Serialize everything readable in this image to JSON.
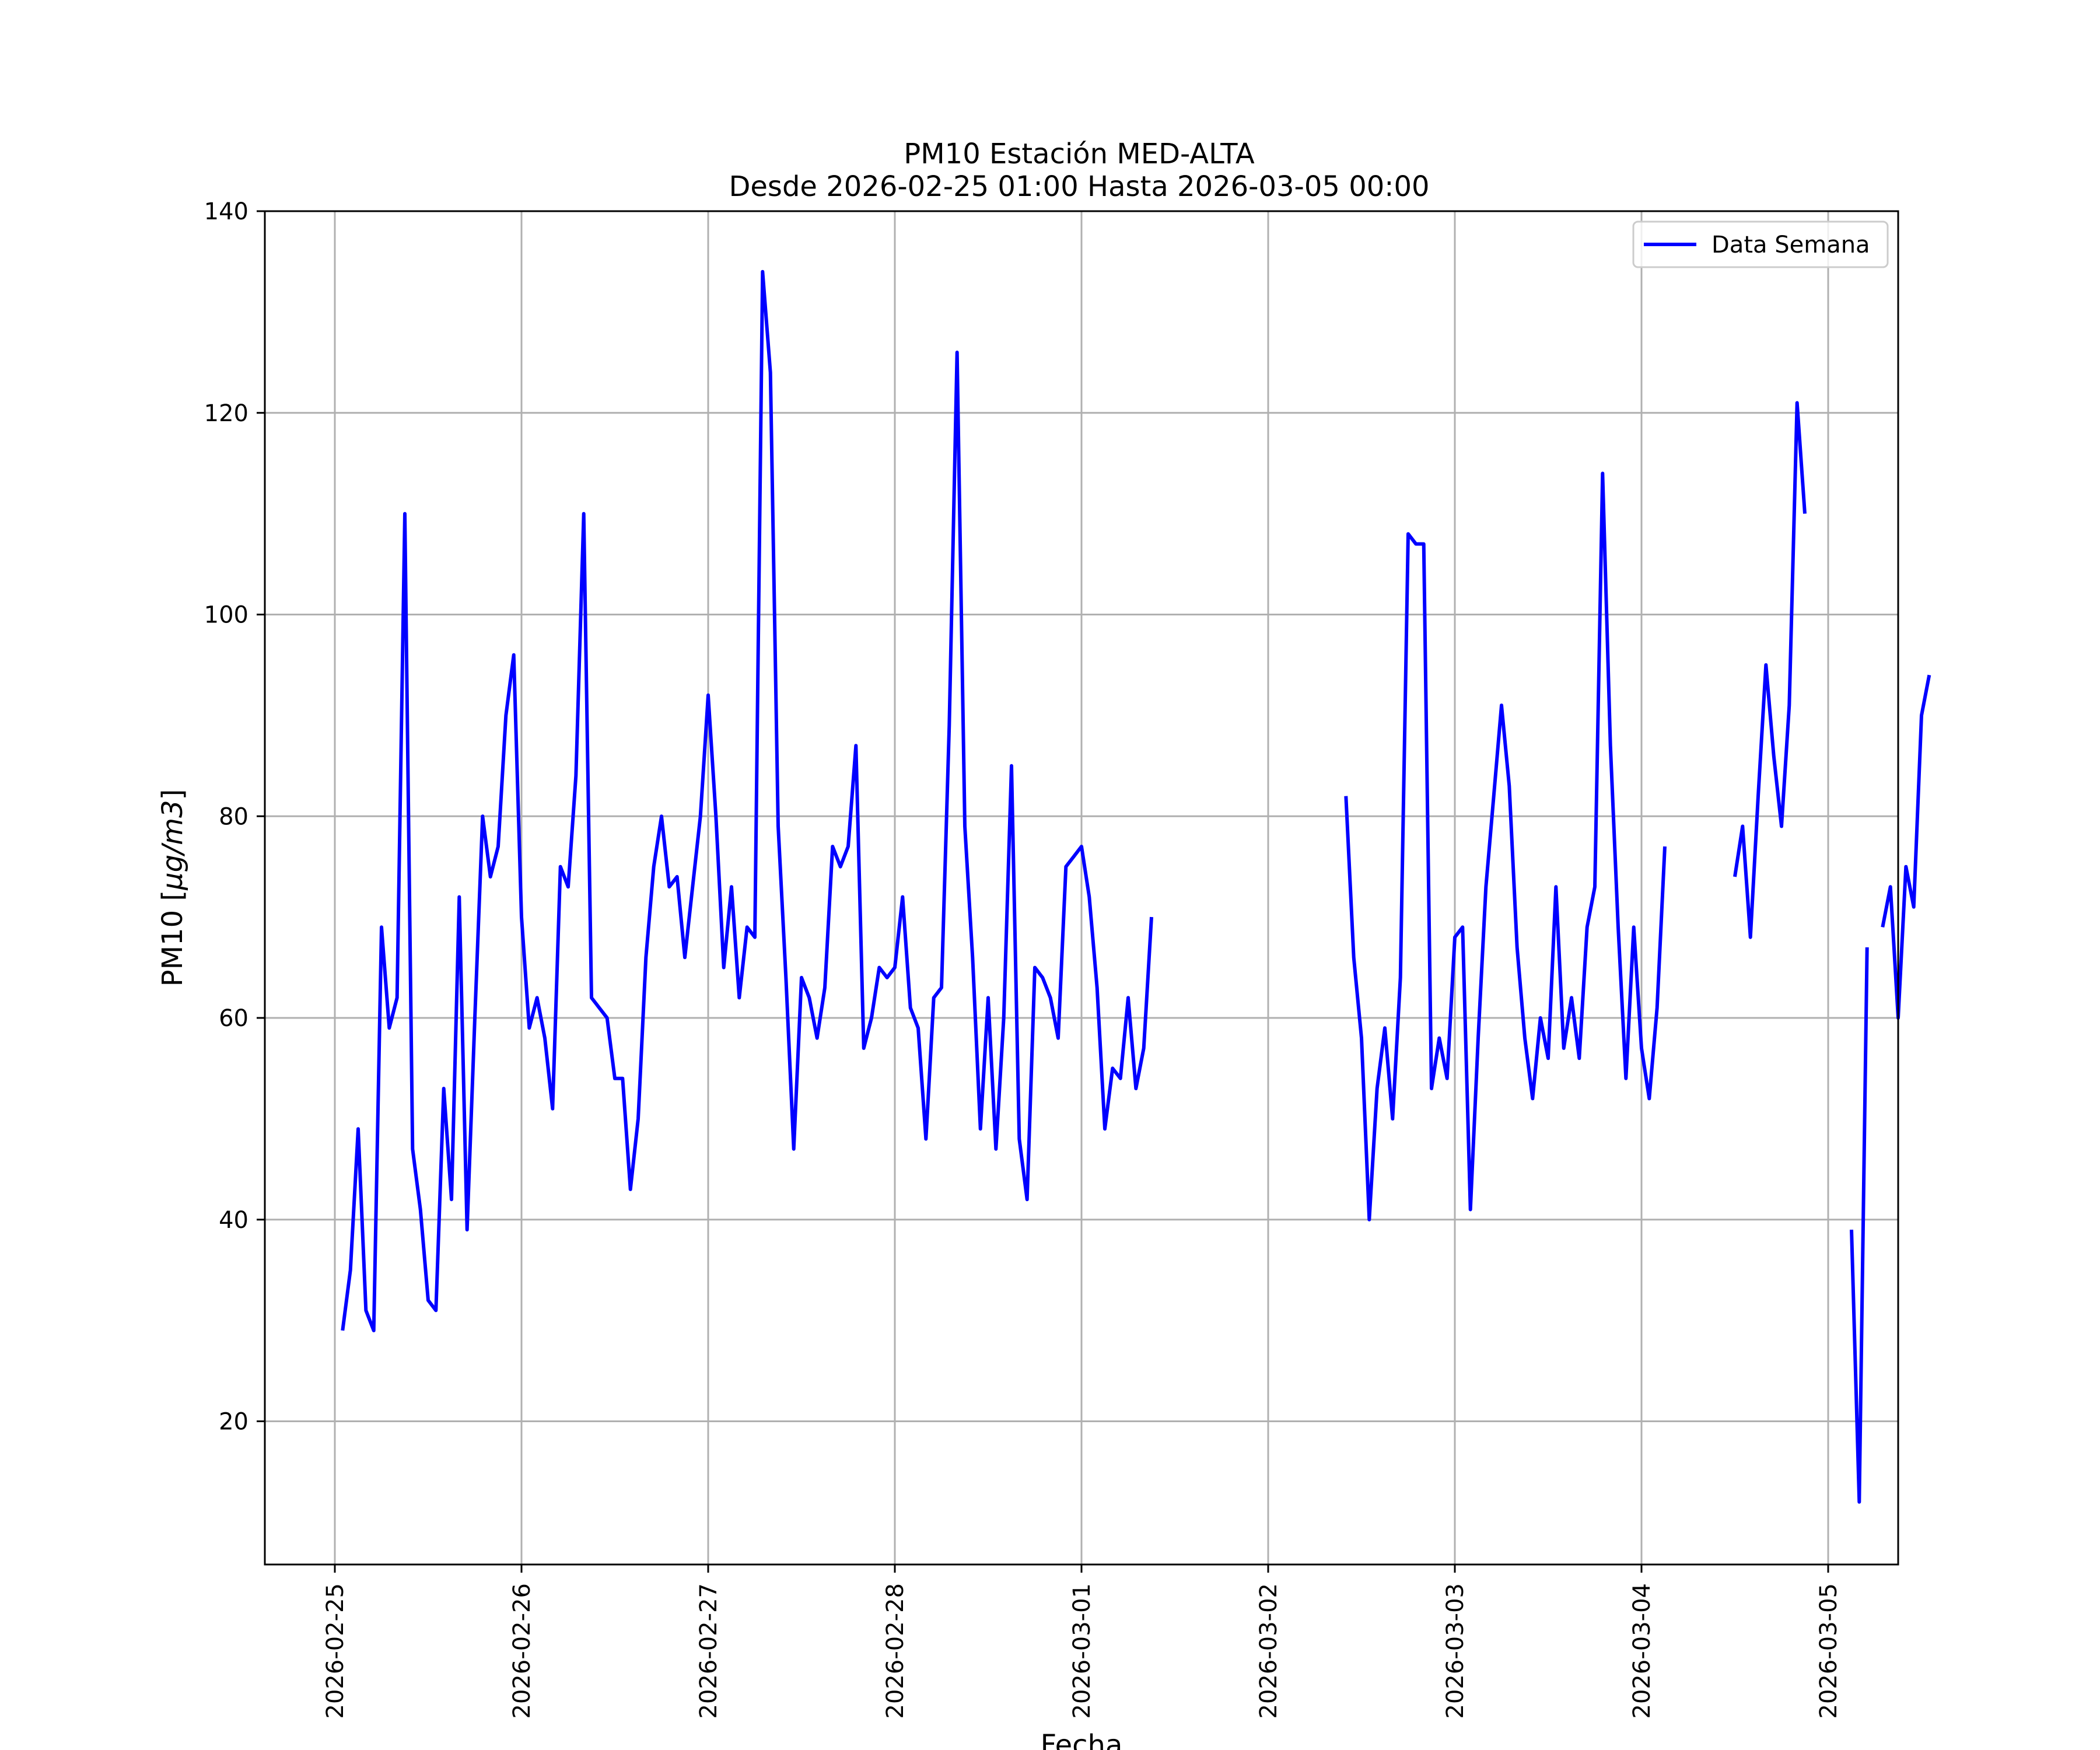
{
  "chart_data": {
    "type": "line",
    "title": "PM10 Estación MED-ALTA",
    "subtitle": "Desde 2026-02-25 01:00 Hasta 2026-03-05 00:00",
    "xlabel": "Fecha",
    "ylabel_main": "PM10 [",
    "ylabel_math": "μg/m3",
    "ylabel_close": "]",
    "xlim": [
      "2026-02-24 15:00",
      "2026-03-05 09:00"
    ],
    "ylim": [
      5.8,
      140
    ],
    "x_ticks": [
      "2026-02-25",
      "2026-02-26",
      "2026-02-27",
      "2026-02-28",
      "2026-03-01",
      "2026-03-02",
      "2026-03-03",
      "2026-03-04",
      "2026-03-05"
    ],
    "y_ticks": [
      20,
      40,
      60,
      80,
      100,
      120,
      140
    ],
    "grid": true,
    "legend_position": "top-right",
    "series": [
      {
        "name": "Data Semana",
        "color": "#0000ff",
        "start": "2026-02-25 01:00",
        "step_hours": 1,
        "values": [
          29,
          35,
          49,
          31,
          29,
          69,
          59,
          62,
          110,
          47,
          41,
          32,
          31,
          53,
          42,
          72,
          39,
          60,
          80,
          74,
          77,
          90,
          96,
          70,
          59,
          62,
          58,
          51,
          75,
          73,
          84,
          110,
          62,
          61,
          60,
          54,
          54,
          43,
          50,
          66,
          75,
          80,
          73,
          74,
          66,
          73,
          80,
          92,
          80,
          65,
          73,
          62,
          69,
          68,
          134,
          124,
          79,
          64,
          47,
          64,
          62,
          58,
          63,
          77,
          75,
          77,
          87,
          57,
          60,
          65,
          64,
          65,
          72,
          61,
          59,
          48,
          62,
          63,
          89,
          126,
          79,
          66,
          49,
          62,
          47,
          60,
          85,
          48,
          42,
          65,
          64,
          62,
          58,
          75,
          76,
          77,
          72,
          63,
          49,
          55,
          54,
          62,
          53,
          57,
          70,
          null,
          null,
          null,
          null,
          null,
          null,
          null,
          null,
          null,
          null,
          null,
          null,
          null,
          null,
          null,
          null,
          null,
          null,
          null,
          null,
          null,
          null,
          null,
          null,
          82,
          66,
          58,
          40,
          53,
          59,
          50,
          64,
          108,
          107,
          107,
          53,
          58,
          54,
          68,
          69,
          41,
          58,
          73,
          82,
          91,
          83,
          67,
          58,
          52,
          60,
          56,
          73,
          57,
          62,
          56,
          69,
          73,
          114,
          87,
          69,
          54,
          69,
          57,
          52,
          61,
          77,
          null,
          null,
          null,
          null,
          null,
          null,
          null,
          null,
          74,
          79,
          68,
          82,
          95,
          86,
          79,
          91,
          121,
          110,
          null,
          null,
          null,
          null,
          null,
          39,
          12,
          67,
          null,
          69,
          73,
          60,
          75,
          71,
          90,
          94
        ]
      }
    ]
  }
}
